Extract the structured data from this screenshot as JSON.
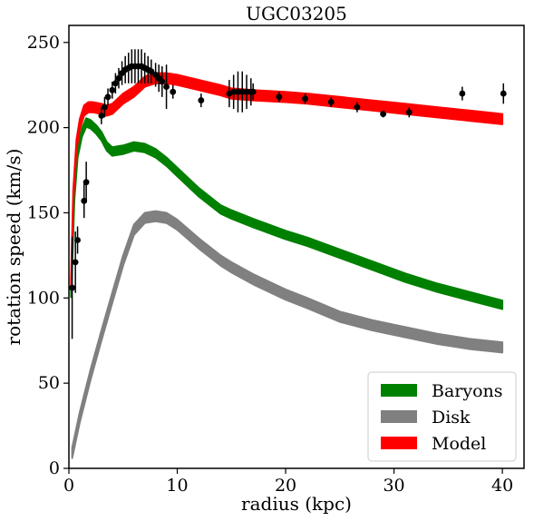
{
  "chart_data": {
    "type": "line",
    "title": "UGC03205",
    "xlabel": "radius (kpc)",
    "ylabel": "rotation speed (km/s)",
    "xlim": [
      0,
      42
    ],
    "ylim": [
      0,
      260
    ],
    "xticks": [
      0,
      10,
      20,
      30,
      40
    ],
    "yticks": [
      0,
      50,
      100,
      150,
      200,
      250
    ],
    "grid": false,
    "legend_position": "bottom-right",
    "series": [
      {
        "name": "Baryons",
        "color": "#008000",
        "band": 2.5,
        "x": [
          0.2,
          0.5,
          0.8,
          1.2,
          1.6,
          2.0,
          2.5,
          3.0,
          3.5,
          4.0,
          5.0,
          6.0,
          7.0,
          8.0,
          9.0,
          10.0,
          12.0,
          14.0,
          15.0,
          17.0,
          20.0,
          22.0,
          25.0,
          28.0,
          31.0,
          34.0,
          37.0,
          40.0
        ],
        "y": [
          103,
          160,
          185,
          197,
          203,
          202,
          199,
          195,
          189,
          186,
          187,
          189,
          188,
          185,
          180,
          174,
          162,
          152,
          149,
          144,
          137,
          133,
          126,
          119,
          112,
          106,
          101,
          96
        ]
      },
      {
        "name": "Disk",
        "color": "#808080",
        "band": 3,
        "x": [
          0.3,
          1.0,
          2.0,
          3.0,
          4.0,
          5.0,
          6.0,
          7.0,
          8.0,
          9.0,
          10.0,
          12.0,
          14.0,
          15.0,
          17.0,
          20.0,
          22.0,
          25.0,
          28.0,
          31.0,
          34.0,
          37.0,
          40.0
        ],
        "y": [
          9,
          30,
          55,
          78,
          100,
          122,
          140,
          147,
          148,
          147,
          143,
          132,
          122,
          118,
          111,
          102,
          97,
          89,
          84,
          80,
          76,
          73,
          71
        ]
      },
      {
        "name": "Model",
        "color": "#ff0000",
        "band": 3,
        "x": [
          0.2,
          0.4,
          0.7,
          1.0,
          1.4,
          1.8,
          2.2,
          3.0,
          3.5,
          4.0,
          5.0,
          6.0,
          7.0,
          8.0,
          9.0,
          10.0,
          12.0,
          14.0,
          15.0,
          17.0,
          20.0,
          22.0,
          25.0,
          28.0,
          31.0,
          34.0,
          37.0,
          40.0
        ],
        "y": [
          108,
          160,
          190,
          202,
          210,
          212,
          212,
          211,
          210,
          211,
          217,
          221,
          227,
          229,
          229,
          228,
          225,
          222,
          220,
          219,
          218,
          217,
          215,
          213,
          211,
          209,
          207,
          205
        ]
      }
    ],
    "observed": {
      "color": "#000000",
      "x": [
        0.3,
        0.6,
        0.8,
        1.4,
        1.6,
        3.0,
        3.3,
        3.6,
        4.0,
        4.3,
        4.6,
        4.9,
        5.2,
        5.5,
        5.8,
        6.1,
        6.4,
        6.7,
        7.0,
        7.3,
        7.6,
        8.0,
        8.3,
        8.6,
        9.0,
        9.6,
        12.2,
        14.8,
        15.2,
        15.6,
        16.0,
        16.4,
        16.8,
        17.0,
        19.4,
        21.8,
        24.2,
        26.6,
        29.0,
        31.4,
        36.3,
        40.1
      ],
      "y": [
        106,
        121,
        134,
        157,
        168,
        207,
        212,
        218,
        222,
        226,
        229,
        232,
        234,
        235,
        236,
        236,
        236,
        236,
        235,
        234,
        233,
        231,
        229,
        227,
        224,
        221,
        216,
        220,
        221,
        221,
        221,
        221,
        221,
        221,
        218,
        217,
        215,
        212,
        208,
        209,
        220,
        220
      ],
      "err": [
        30,
        18,
        8,
        10,
        12,
        5,
        6,
        5,
        5,
        6,
        6,
        7,
        8,
        9,
        10,
        10,
        10,
        10,
        9,
        8,
        7,
        7,
        8,
        9,
        13,
        4,
        4,
        8,
        10,
        12,
        12,
        10,
        8,
        5,
        3,
        3,
        3,
        3,
        2,
        3,
        4,
        6
      ]
    }
  }
}
